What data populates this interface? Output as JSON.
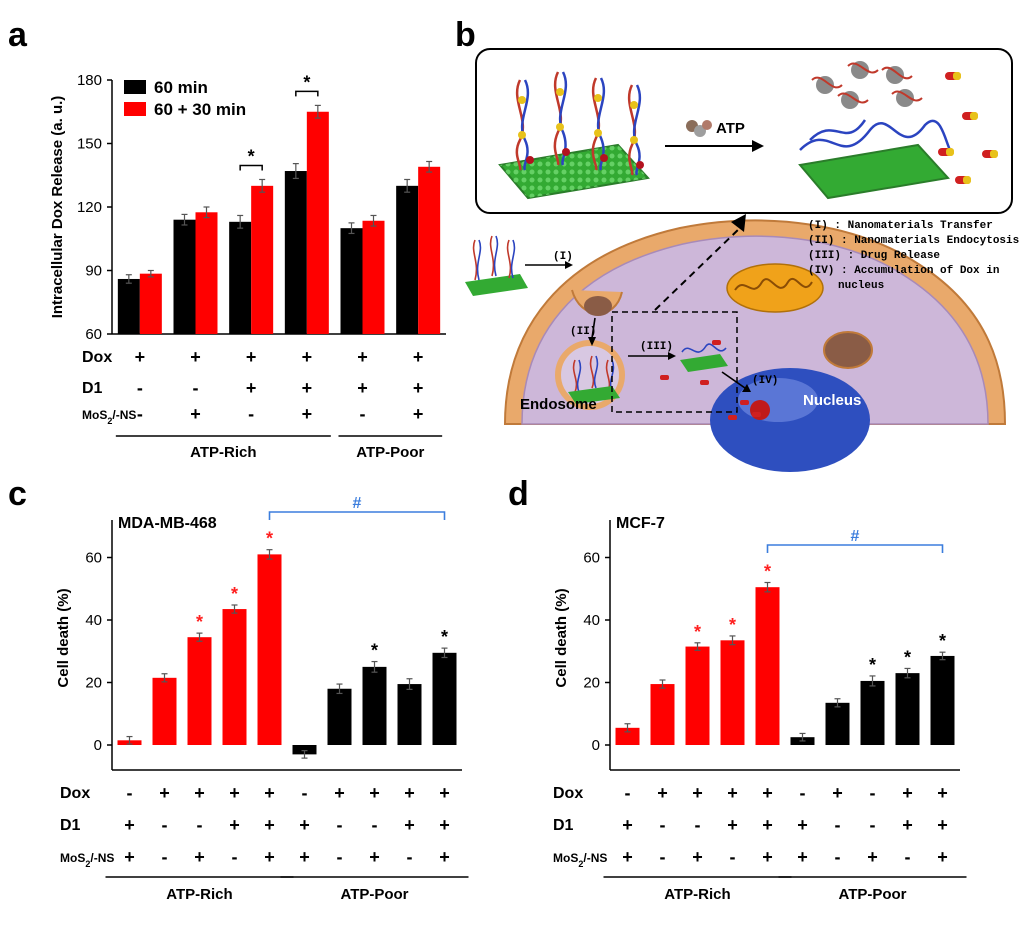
{
  "panels": {
    "a": "a",
    "b": "b",
    "c": "c",
    "d": "d"
  },
  "chart_data": [
    {
      "id": "a",
      "type": "bar",
      "title": "",
      "ylabel": "Intracellular Dox Release (a. u.)",
      "ylim": [
        60,
        180
      ],
      "yticks": [
        60,
        90,
        120,
        150,
        180
      ],
      "series": [
        {
          "name": "60 min",
          "color": "#000000",
          "values": [
            86,
            114,
            113,
            137,
            110,
            130
          ],
          "errors": [
            2,
            2.5,
            3,
            3.5,
            2.5,
            3
          ]
        },
        {
          "name": "60 + 30 min",
          "color": "#ff0000",
          "values": [
            88.5,
            117.5,
            130,
            165,
            113.5,
            139
          ],
          "errors": [
            1.5,
            2.5,
            3,
            3,
            2.5,
            2.5
          ]
        }
      ],
      "legend": "top-left",
      "significance": [
        {
          "group": 2,
          "mark": "*"
        },
        {
          "group": 3,
          "mark": "*"
        }
      ],
      "conditions": [
        {
          "name": "Dox",
          "signs": [
            "+",
            "+",
            "+",
            "+",
            "+",
            "+"
          ]
        },
        {
          "name": "D1",
          "signs": [
            "-",
            "-",
            "+",
            "+",
            "+",
            "+"
          ]
        },
        {
          "name": "MoS",
          "sub": "2",
          "suffix": "/-NS",
          "signs": [
            "-",
            "+",
            "-",
            "+",
            "-",
            "+"
          ]
        }
      ],
      "groups": [
        {
          "label": "ATP-Rich",
          "from": 0,
          "to": 3
        },
        {
          "label": "ATP-Poor",
          "from": 4,
          "to": 5
        }
      ]
    },
    {
      "id": "c",
      "type": "bar",
      "title": "MDA-MB-468",
      "ylabel": "Cell death (%)",
      "ylim": [
        -8,
        72
      ],
      "yticks": [
        0,
        20,
        40,
        60
      ],
      "values": [
        1.5,
        21.5,
        34.5,
        43.5,
        61,
        -3,
        18,
        25,
        19.5,
        29.5
      ],
      "errors": [
        1.2,
        1.3,
        1.3,
        1.3,
        1.5,
        1.2,
        1.5,
        1.7,
        1.7,
        1.5
      ],
      "colors": [
        "#ff0000",
        "#ff0000",
        "#ff0000",
        "#ff0000",
        "#ff0000",
        "#000000",
        "#000000",
        "#000000",
        "#000000",
        "#000000"
      ],
      "stars": [
        null,
        null,
        "red",
        "red",
        "red",
        null,
        null,
        "black",
        null,
        "black"
      ],
      "hash": {
        "from": 4,
        "to": 9,
        "mark": "#",
        "color": "#3b7ddd"
      },
      "conditions": [
        {
          "name": "Dox",
          "signs": [
            "-",
            "+",
            "+",
            "+",
            "+",
            "-",
            "+",
            "+",
            "+",
            "+"
          ]
        },
        {
          "name": "D1",
          "signs": [
            "+",
            "-",
            "-",
            "+",
            "+",
            "+",
            "-",
            "-",
            "+",
            "+"
          ]
        },
        {
          "name": "MoS",
          "sub": "2",
          "suffix": "/-NS",
          "signs": [
            "+",
            "-",
            "+",
            "-",
            "+",
            "+",
            "-",
            "+",
            "-",
            "+"
          ]
        }
      ],
      "groups": [
        {
          "label": "ATP-Rich",
          "from": 0,
          "to": 4
        },
        {
          "label": "ATP-Poor",
          "from": 5,
          "to": 9
        }
      ]
    },
    {
      "id": "d",
      "type": "bar",
      "title": "MCF-7",
      "ylabel": "Cell death (%)",
      "ylim": [
        -8,
        72
      ],
      "yticks": [
        0,
        20,
        40,
        60
      ],
      "values": [
        5.5,
        19.5,
        31.5,
        33.5,
        50.5,
        2.5,
        13.5,
        20.5,
        23,
        28.5
      ],
      "errors": [
        1.3,
        1.3,
        1.2,
        1.4,
        1.5,
        1.2,
        1.3,
        1.6,
        1.5,
        1.2
      ],
      "colors": [
        "#ff0000",
        "#ff0000",
        "#ff0000",
        "#ff0000",
        "#ff0000",
        "#000000",
        "#000000",
        "#000000",
        "#000000",
        "#000000"
      ],
      "stars": [
        null,
        null,
        "red",
        "red",
        "red",
        null,
        null,
        "black",
        "black",
        "black"
      ],
      "hash": {
        "from": 4,
        "to": 9,
        "mark": "#",
        "color": "#3b7ddd"
      },
      "conditions": [
        {
          "name": "Dox",
          "signs": [
            "-",
            "+",
            "+",
            "+",
            "+",
            "-",
            "+",
            "-",
            "+",
            "+"
          ]
        },
        {
          "name": "D1",
          "signs": [
            "+",
            "-",
            "-",
            "+",
            "+",
            "+",
            "-",
            "-",
            "+",
            "+"
          ]
        },
        {
          "name": "MoS",
          "sub": "2",
          "suffix": "/-NS",
          "signs": [
            "+",
            "-",
            "+",
            "-",
            "+",
            "+",
            "-",
            "+",
            "-",
            "+"
          ]
        }
      ],
      "groups": [
        {
          "label": "ATP-Rich",
          "from": 0,
          "to": 4
        },
        {
          "label": "ATP-Poor",
          "from": 5,
          "to": 9
        }
      ]
    }
  ],
  "diagram": {
    "arrow_label": "ATP",
    "steps": [
      "(I) : Nanomaterials Transfer",
      "(II) : Nanomaterials Endocytosis",
      "(III) : Drug Release",
      "(IV) : Accumulation of Dox in",
      "nucleus"
    ],
    "markers": [
      "(I)",
      "(II)",
      "(III)",
      "(IV)"
    ],
    "labels": {
      "endosome": "Endosome",
      "nucleus": "Nucleus"
    }
  }
}
